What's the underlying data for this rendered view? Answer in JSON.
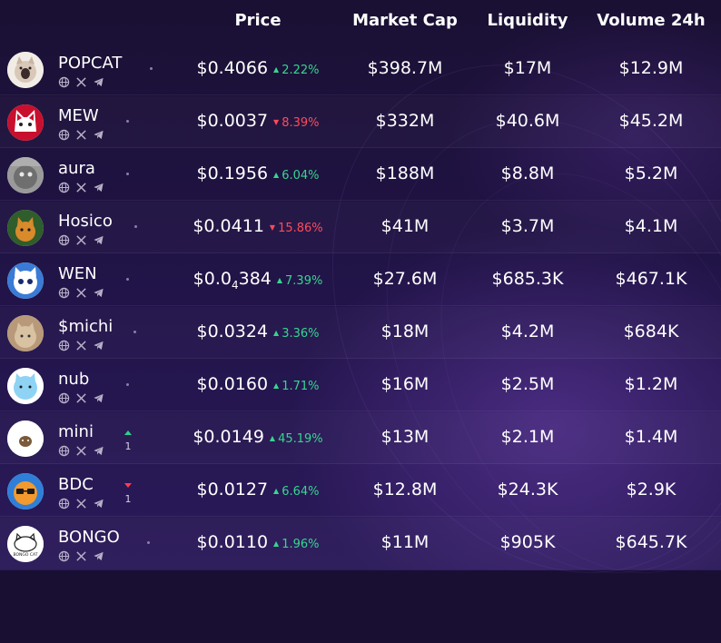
{
  "header": {
    "price": "Price",
    "market_cap": "Market Cap",
    "liquidity": "Liquidity",
    "volume": "Volume 24h"
  },
  "tokens": [
    {
      "name": "POPCAT",
      "price": "$0.4066",
      "change": "2.22%",
      "dir": "up",
      "market_cap": "$398.7M",
      "liquidity": "$17M",
      "volume": "$12.9M",
      "rank": "",
      "rank_dir": ""
    },
    {
      "name": "MEW",
      "price": "$0.0037",
      "change": "8.39%",
      "dir": "down",
      "market_cap": "$332M",
      "liquidity": "$40.6M",
      "volume": "$45.2M",
      "rank": "",
      "rank_dir": ""
    },
    {
      "name": "aura",
      "price": "$0.1956",
      "change": "6.04%",
      "dir": "up",
      "market_cap": "$188M",
      "liquidity": "$8.8M",
      "volume": "$5.2M",
      "rank": "",
      "rank_dir": ""
    },
    {
      "name": "Hosico",
      "price": "$0.0411",
      "change": "15.86%",
      "dir": "down",
      "market_cap": "$41M",
      "liquidity": "$3.7M",
      "volume": "$4.1M",
      "rank": "",
      "rank_dir": ""
    },
    {
      "name": "WEN",
      "price_main": "$0.0",
      "price_sub": "4",
      "price_tail": "384",
      "change": "7.39%",
      "dir": "up",
      "market_cap": "$27.6M",
      "liquidity": "$685.3K",
      "volume": "$467.1K",
      "rank": "",
      "rank_dir": ""
    },
    {
      "name": "$michi",
      "price": "$0.0324",
      "change": "3.36%",
      "dir": "up",
      "market_cap": "$18M",
      "liquidity": "$4.2M",
      "volume": "$684K",
      "rank": "",
      "rank_dir": ""
    },
    {
      "name": "nub",
      "price": "$0.0160",
      "change": "1.71%",
      "dir": "up",
      "market_cap": "$16M",
      "liquidity": "$2.5M",
      "volume": "$1.2M",
      "rank": "",
      "rank_dir": ""
    },
    {
      "name": "mini",
      "price": "$0.0149",
      "change": "45.19%",
      "dir": "up",
      "market_cap": "$13M",
      "liquidity": "$2.1M",
      "volume": "$1.4M",
      "rank": "1",
      "rank_dir": "up"
    },
    {
      "name": "BDC",
      "price": "$0.0127",
      "change": "6.64%",
      "dir": "up",
      "market_cap": "$12.8M",
      "liquidity": "$24.3K",
      "volume": "$2.9K",
      "rank": "1",
      "rank_dir": "down"
    },
    {
      "name": "BONGO",
      "price": "$0.0110",
      "change": "1.96%",
      "dir": "up",
      "market_cap": "$11M",
      "liquidity": "$905K",
      "volume": "$645.7K",
      "rank": "",
      "rank_dir": ""
    }
  ],
  "avatar_logo_text": {
    "bongo": "BONGO CAT"
  },
  "social_icons": [
    "globe-icon",
    "x-icon",
    "telegram-icon"
  ],
  "colors": {
    "up": "#36d68f",
    "down": "#ff4a5a",
    "background": "#190f33"
  }
}
